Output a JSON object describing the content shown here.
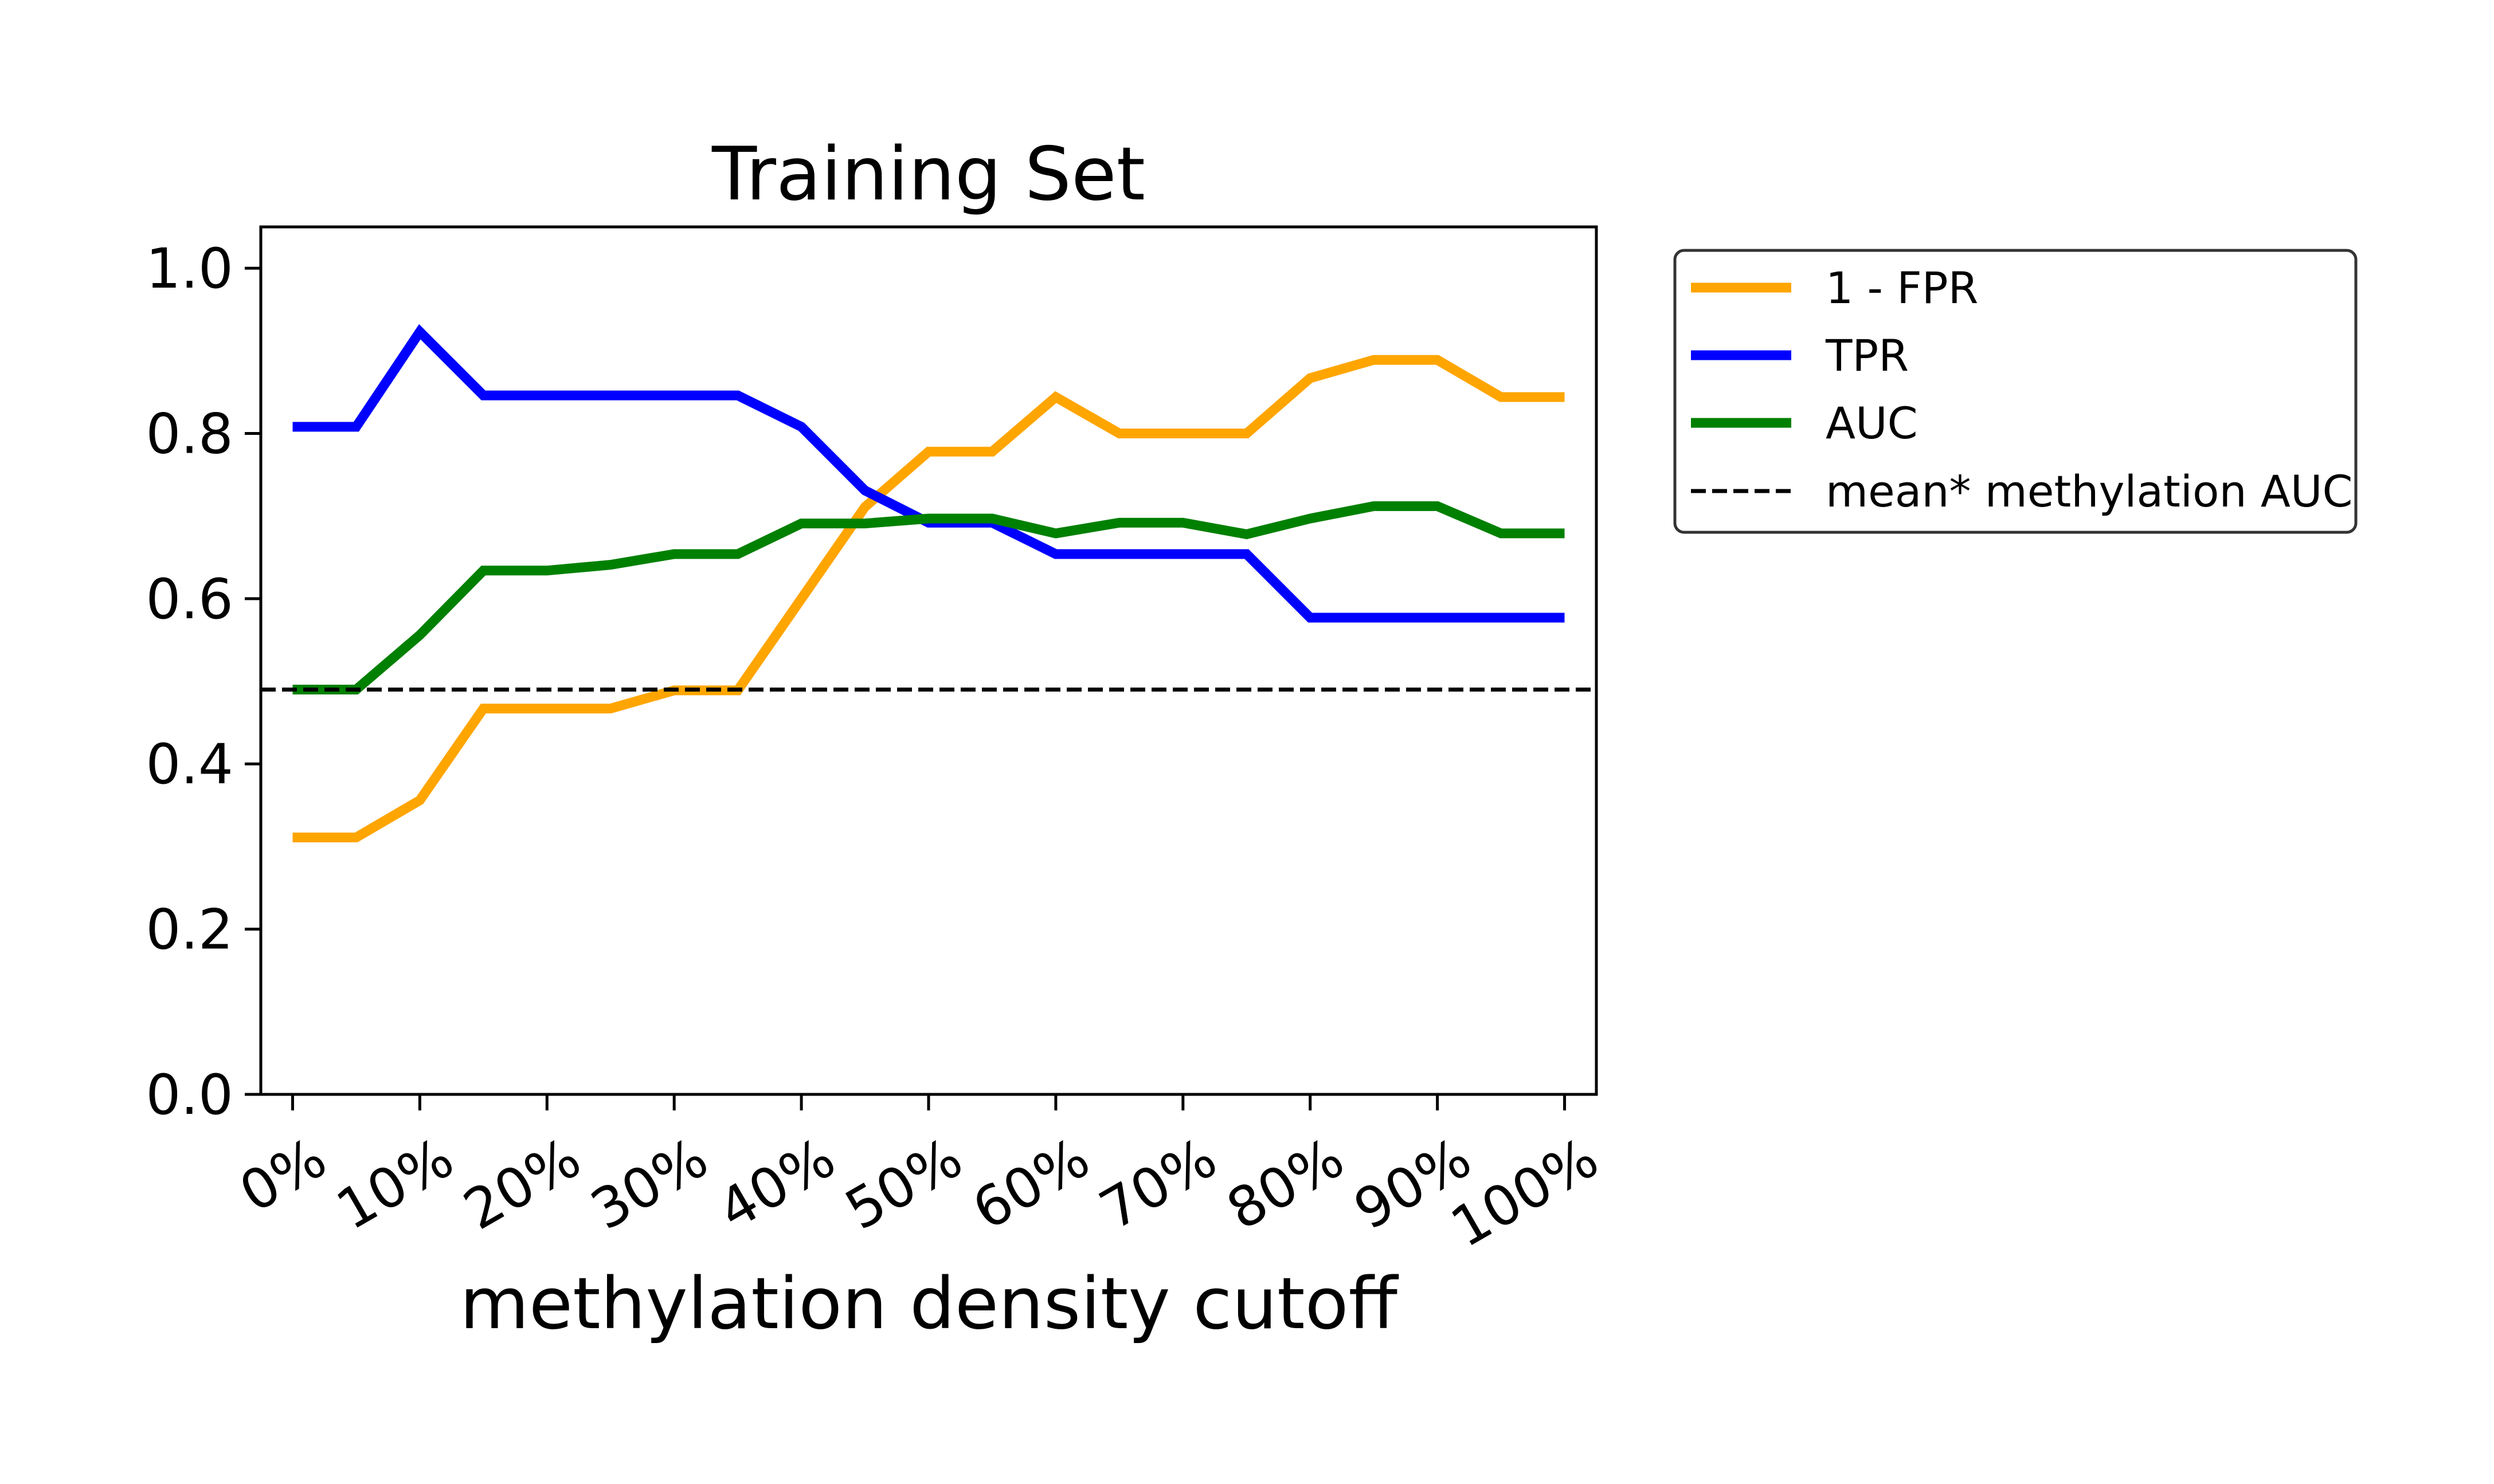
{
  "chart_data": {
    "type": "line",
    "title": "Training Set",
    "xlabel": "methylation density cutoff",
    "ylabel": "",
    "ylim": [
      0.0,
      1.05
    ],
    "xlim": [
      -0.025,
      1.025
    ],
    "y_ticks": [
      {
        "value": 0.0,
        "label": "0.0"
      },
      {
        "value": 0.2,
        "label": "0.2"
      },
      {
        "value": 0.4,
        "label": "0.4"
      },
      {
        "value": 0.6,
        "label": "0.6"
      },
      {
        "value": 0.8,
        "label": "0.8"
      },
      {
        "value": 1.0,
        "label": "1.0"
      }
    ],
    "x_ticks": [
      {
        "value": 0.0,
        "label": "0%"
      },
      {
        "value": 0.1,
        "label": "10%"
      },
      {
        "value": 0.2,
        "label": "20%"
      },
      {
        "value": 0.3,
        "label": "30%"
      },
      {
        "value": 0.4,
        "label": "40%"
      },
      {
        "value": 0.5,
        "label": "50%"
      },
      {
        "value": 0.6,
        "label": "60%"
      },
      {
        "value": 0.7,
        "label": "70%"
      },
      {
        "value": 0.8,
        "label": "80%"
      },
      {
        "value": 0.9,
        "label": "90%"
      },
      {
        "value": 1.0,
        "label": "100%"
      }
    ],
    "x": [
      0.0,
      0.05,
      0.1,
      0.15,
      0.2,
      0.25,
      0.3,
      0.35,
      0.4,
      0.45,
      0.5,
      0.55,
      0.6,
      0.65,
      0.7,
      0.75,
      0.8,
      0.85,
      0.9,
      0.95,
      1.0
    ],
    "series": [
      {
        "name": "1 - FPR",
        "color": "#FFA500",
        "style": "solid",
        "values": [
          0.311,
          0.311,
          0.356,
          0.467,
          0.467,
          0.467,
          0.489,
          0.489,
          0.6,
          0.711,
          0.778,
          0.778,
          0.844,
          0.8,
          0.8,
          0.8,
          0.867,
          0.889,
          0.889,
          0.844,
          0.844
        ]
      },
      {
        "name": "TPR",
        "color": "#0000FF",
        "style": "solid",
        "values": [
          0.808,
          0.808,
          0.923,
          0.846,
          0.846,
          0.846,
          0.846,
          0.846,
          0.808,
          0.731,
          0.692,
          0.692,
          0.654,
          0.654,
          0.654,
          0.654,
          0.577,
          0.577,
          0.577,
          0.577,
          0.577
        ]
      },
      {
        "name": "AUC",
        "color": "#008000",
        "style": "solid",
        "values": [
          0.49,
          0.49,
          0.556,
          0.634,
          0.634,
          0.641,
          0.654,
          0.654,
          0.691,
          0.691,
          0.697,
          0.697,
          0.679,
          0.692,
          0.692,
          0.678,
          0.697,
          0.712,
          0.712,
          0.679,
          0.679
        ]
      },
      {
        "name": "mean* methylation AUC",
        "color": "#000000",
        "style": "dashed",
        "hline": 0.49
      }
    ],
    "grid": false,
    "legend": "outside-right-top"
  }
}
